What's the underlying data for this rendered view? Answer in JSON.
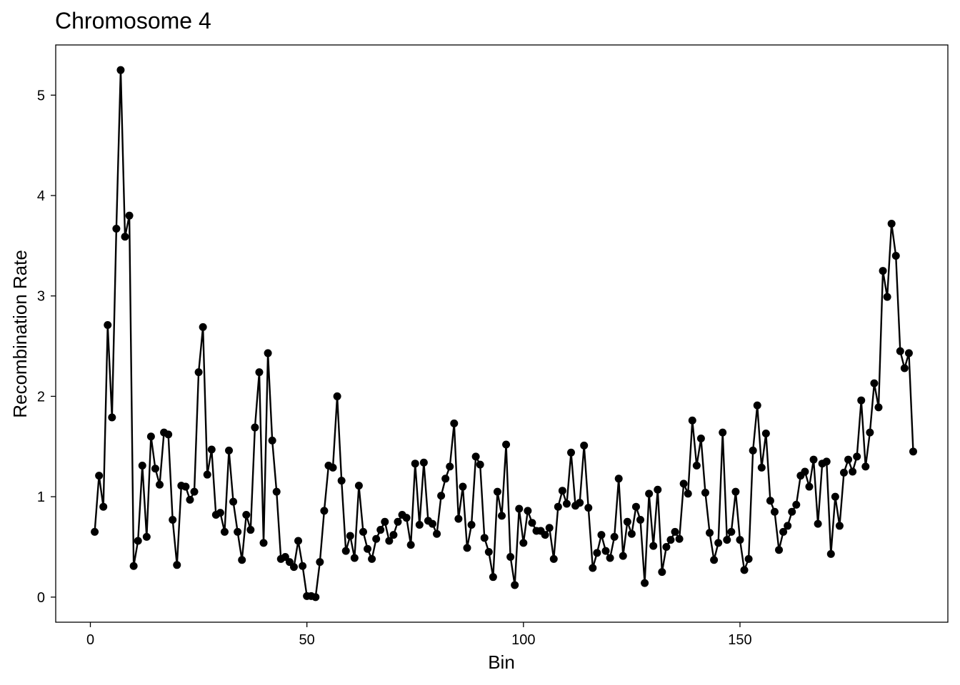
{
  "chart_data": {
    "type": "line",
    "title": "Chromosome 4",
    "xlabel": "Bin",
    "ylabel": "Recombination Rate",
    "xlim": [
      -8,
      198
    ],
    "ylim": [
      -0.25,
      5.5
    ],
    "xticks": [
      0,
      50,
      100,
      150
    ],
    "yticks": [
      0,
      1,
      2,
      3,
      4,
      5
    ],
    "grid": false,
    "legend": "none",
    "colors": {
      "line": "#000000",
      "point": "#000000",
      "panel_border": "#000000"
    },
    "x": [
      1,
      2,
      3,
      4,
      5,
      6,
      7,
      8,
      9,
      10,
      11,
      12,
      13,
      14,
      15,
      16,
      17,
      18,
      19,
      20,
      21,
      22,
      23,
      24,
      25,
      26,
      27,
      28,
      29,
      30,
      31,
      32,
      33,
      34,
      35,
      36,
      37,
      38,
      39,
      40,
      41,
      42,
      43,
      44,
      45,
      46,
      47,
      48,
      49,
      50,
      51,
      52,
      53,
      54,
      55,
      56,
      57,
      58,
      59,
      60,
      61,
      62,
      63,
      64,
      65,
      66,
      67,
      68,
      69,
      70,
      71,
      72,
      73,
      74,
      75,
      76,
      77,
      78,
      79,
      80,
      81,
      82,
      83,
      84,
      85,
      86,
      87,
      88,
      89,
      90,
      91,
      92,
      93,
      94,
      95,
      96,
      97,
      98,
      99,
      100,
      101,
      102,
      103,
      104,
      105,
      106,
      107,
      108,
      109,
      110,
      111,
      112,
      113,
      114,
      115,
      116,
      117,
      118,
      119,
      120,
      121,
      122,
      123,
      124,
      125,
      126,
      127,
      128,
      129,
      130,
      131,
      132,
      133,
      134,
      135,
      136,
      137,
      138,
      139,
      140,
      141,
      142,
      143,
      144,
      145,
      146,
      147,
      148,
      149,
      150,
      151,
      152,
      153,
      154,
      155,
      156,
      157,
      158,
      159,
      160,
      161,
      162,
      163,
      164,
      165,
      166,
      167,
      168,
      169,
      170,
      171,
      172,
      173,
      174,
      175,
      176,
      177,
      178,
      179,
      180,
      181,
      182,
      183,
      184,
      185,
      186,
      187,
      188,
      189,
      190
    ],
    "y": [
      0.65,
      1.21,
      0.9,
      2.71,
      1.79,
      3.67,
      5.25,
      3.59,
      3.8,
      0.31,
      0.56,
      1.31,
      0.6,
      1.6,
      1.28,
      1.12,
      1.64,
      1.62,
      0.77,
      0.32,
      1.11,
      1.1,
      0.97,
      1.05,
      2.24,
      2.69,
      1.22,
      1.47,
      0.82,
      0.84,
      0.65,
      1.46,
      0.95,
      0.65,
      0.37,
      0.82,
      0.67,
      1.69,
      2.24,
      0.54,
      2.43,
      1.56,
      1.05,
      0.38,
      0.4,
      0.35,
      0.3,
      0.56,
      0.31,
      0.01,
      0.01,
      0.0,
      0.35,
      0.86,
      1.31,
      1.29,
      2.0,
      1.16,
      0.46,
      0.61,
      0.39,
      1.11,
      0.65,
      0.48,
      0.38,
      0.58,
      0.67,
      0.75,
      0.56,
      0.62,
      0.75,
      0.82,
      0.79,
      0.52,
      1.33,
      0.72,
      1.34,
      0.76,
      0.73,
      0.63,
      1.01,
      1.18,
      1.3,
      1.73,
      0.78,
      1.1,
      0.49,
      0.72,
      1.4,
      1.32,
      0.59,
      0.45,
      0.2,
      1.05,
      0.81,
      1.52,
      0.4,
      0.12,
      0.88,
      0.54,
      0.86,
      0.74,
      0.66,
      0.66,
      0.62,
      0.69,
      0.38,
      0.9,
      1.06,
      0.93,
      1.44,
      0.91,
      0.94,
      1.51,
      0.89,
      0.29,
      0.44,
      0.62,
      0.46,
      0.39,
      0.6,
      1.18,
      0.41,
      0.75,
      0.63,
      0.9,
      0.77,
      0.14,
      1.03,
      0.51,
      1.07,
      0.25,
      0.5,
      0.57,
      0.65,
      0.58,
      1.13,
      1.03,
      1.76,
      1.31,
      1.58,
      1.04,
      0.64,
      0.37,
      0.54,
      1.64,
      0.57,
      0.65,
      1.05,
      0.57,
      0.27,
      0.38,
      1.46,
      1.91,
      1.29,
      1.63,
      0.96,
      0.85,
      0.47,
      0.65,
      0.71,
      0.85,
      0.92,
      1.21,
      1.25,
      1.1,
      1.37,
      0.73,
      1.33,
      1.35,
      0.43,
      1.0,
      0.71,
      1.24,
      1.37,
      1.25,
      1.4,
      1.96,
      1.3,
      1.64,
      2.13,
      1.89,
      3.25,
      2.99,
      3.72,
      3.4,
      2.45,
      2.28,
      2.43,
      1.45
    ]
  }
}
